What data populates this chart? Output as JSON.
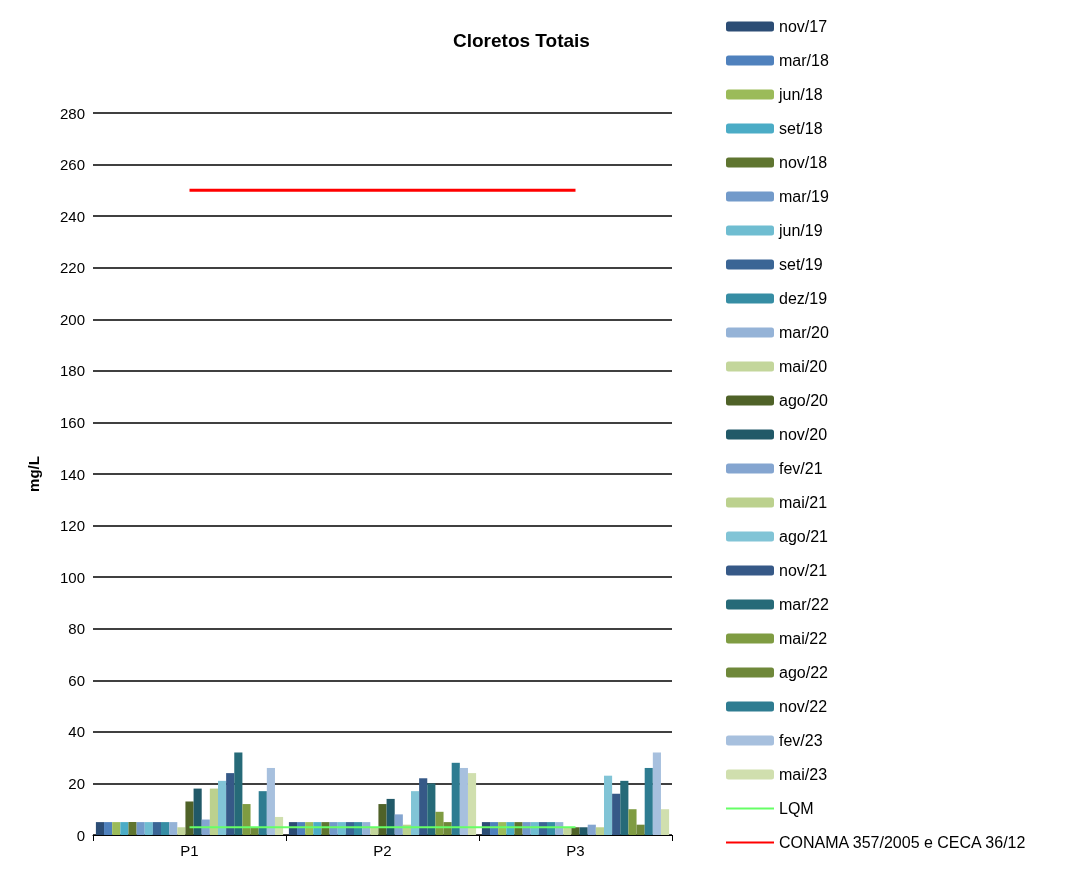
{
  "chart_data": {
    "type": "bar",
    "title": "Cloretos Totais",
    "ylabel": "mg/L",
    "categories": [
      "P1",
      "P2",
      "P3"
    ],
    "ylim": [
      0,
      280
    ],
    "yticks": [
      0,
      20,
      40,
      60,
      80,
      100,
      120,
      140,
      160,
      180,
      200,
      220,
      240,
      260,
      280
    ],
    "grid": "y",
    "legend": "right",
    "marker": "none",
    "line_style": "solid",
    "series": [
      {
        "name": "nov/17",
        "color": "#2c4d75",
        "values": [
          5,
          5,
          5
        ]
      },
      {
        "name": "mar/18",
        "color": "#4f81bd",
        "values": [
          5,
          5,
          5
        ]
      },
      {
        "name": "jun/18",
        "color": "#9bbb59",
        "values": [
          5,
          5,
          5
        ]
      },
      {
        "name": "set/18",
        "color": "#4bacc6",
        "values": [
          5,
          5,
          5
        ]
      },
      {
        "name": "nov/18",
        "color": "#5f7530",
        "values": [
          5,
          5,
          5
        ]
      },
      {
        "name": "mar/19",
        "color": "#729aca",
        "values": [
          5,
          5,
          5
        ]
      },
      {
        "name": "jun/19",
        "color": "#6fbdd1",
        "values": [
          5,
          5,
          5
        ]
      },
      {
        "name": "set/19",
        "color": "#3a6595",
        "values": [
          5,
          5,
          5
        ]
      },
      {
        "name": "dez/19",
        "color": "#368da4",
        "values": [
          5,
          5,
          5
        ]
      },
      {
        "name": "mar/20",
        "color": "#95b3d7",
        "values": [
          5,
          5,
          5
        ]
      },
      {
        "name": "mai/20",
        "color": "#c3d69b",
        "values": [
          3,
          3,
          3
        ]
      },
      {
        "name": "ago/20",
        "color": "#4f6228",
        "values": [
          13,
          12,
          3
        ]
      },
      {
        "name": "nov/20",
        "color": "#215968",
        "values": [
          18,
          14,
          3
        ]
      },
      {
        "name": "fev/21",
        "color": "#84a5d0",
        "values": [
          6,
          8,
          4
        ]
      },
      {
        "name": "mai/21",
        "color": "#bcd18e",
        "values": [
          18,
          4,
          3
        ]
      },
      {
        "name": "ago/21",
        "color": "#81c4d6",
        "values": [
          21,
          17,
          23
        ]
      },
      {
        "name": "nov/21",
        "color": "#365987",
        "values": [
          24,
          22,
          16
        ]
      },
      {
        "name": "mar/22",
        "color": "#266a78",
        "values": [
          32,
          20,
          21
        ]
      },
      {
        "name": "mai/22",
        "color": "#7f9c42",
        "values": [
          12,
          9,
          10
        ]
      },
      {
        "name": "ago/22",
        "color": "#6f883a",
        "values": [
          3,
          5,
          4
        ]
      },
      {
        "name": "nov/22",
        "color": "#2e7c91",
        "values": [
          17,
          28,
          26
        ]
      },
      {
        "name": "fev/23",
        "color": "#a7c0de",
        "values": [
          26,
          26,
          32
        ]
      },
      {
        "name": "mai/23",
        "color": "#d0dfae",
        "values": [
          7,
          24,
          10
        ]
      },
      {
        "name": "LQM",
        "type": "line",
        "color": "#66ff66",
        "values": [
          3,
          3,
          3
        ]
      },
      {
        "name": "CONAMA 357/2005 e CECA 36/12",
        "type": "line",
        "color": "#ff0000",
        "values": [
          250,
          250,
          250
        ]
      }
    ]
  }
}
